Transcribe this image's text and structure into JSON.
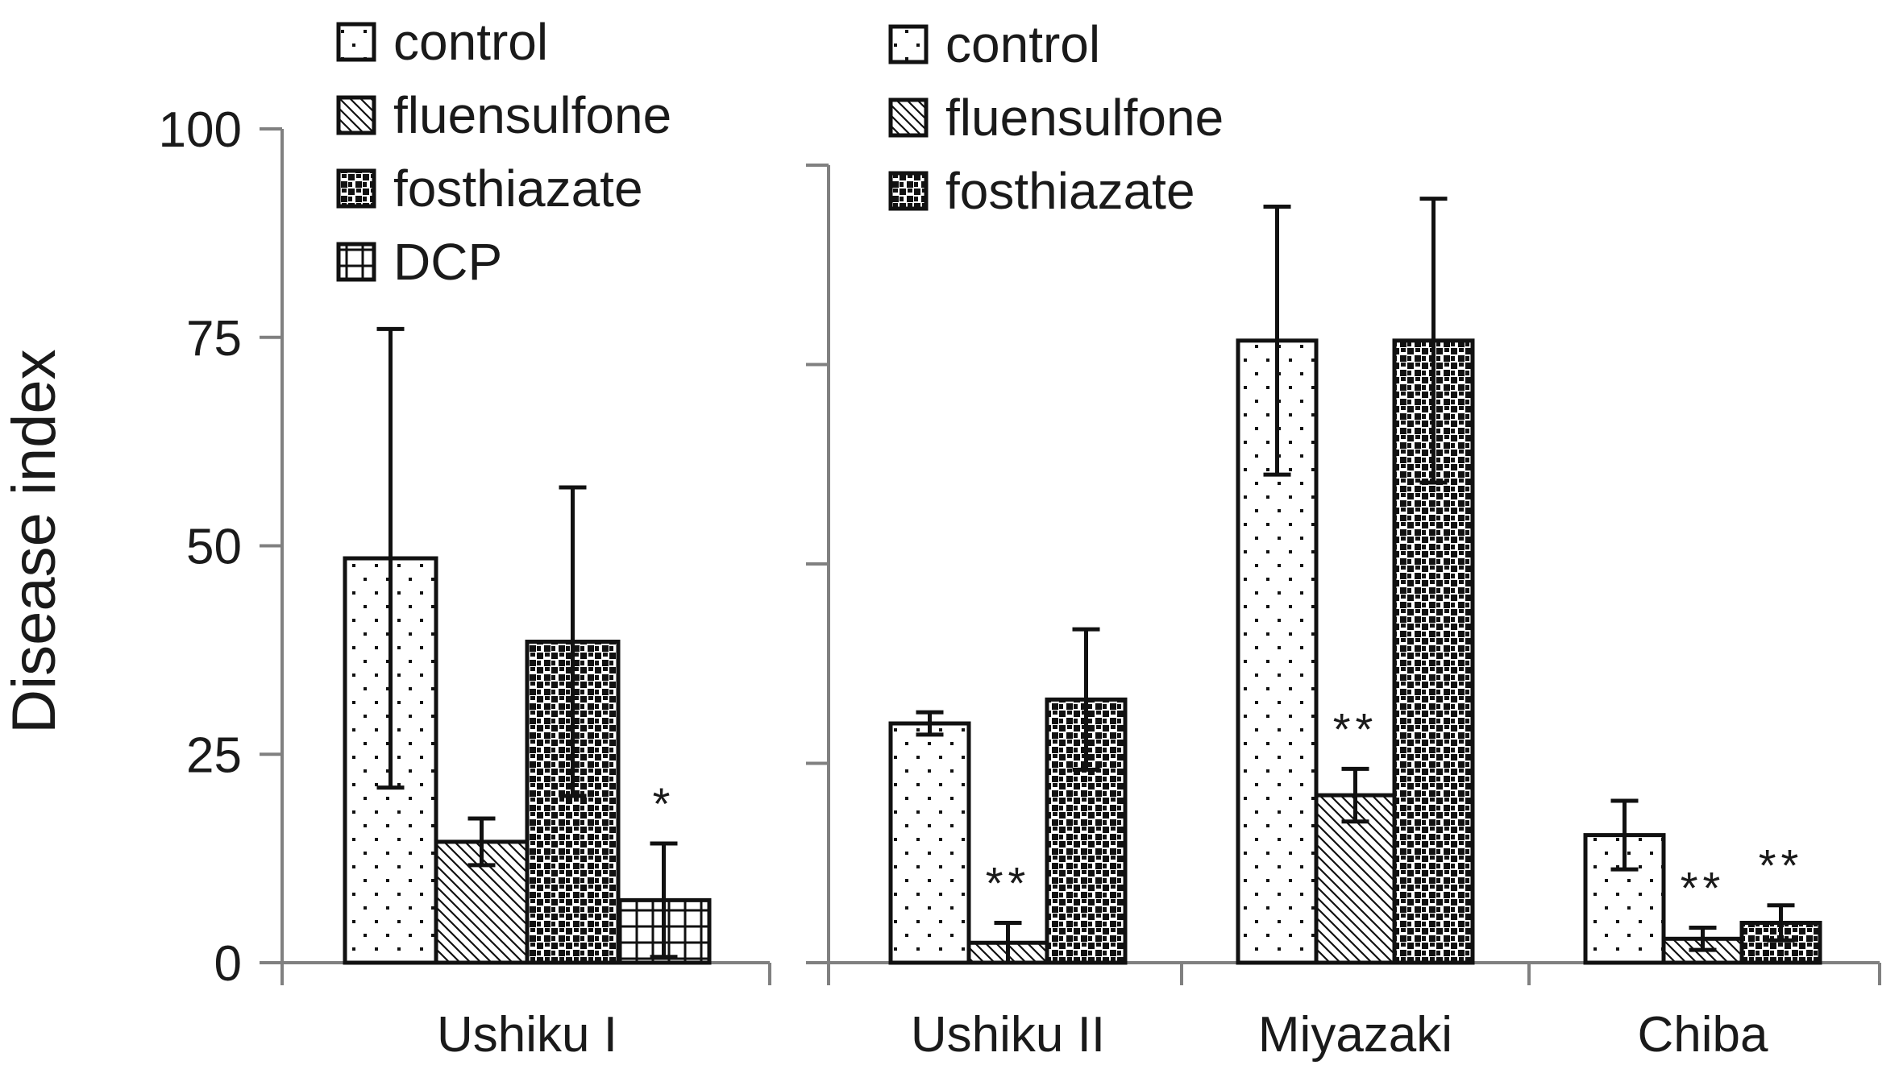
{
  "y_axis_title": "Disease index",
  "chart_data": [
    {
      "type": "bar",
      "panel": "left",
      "categories": [
        "Ushiku I"
      ],
      "ylim": [
        0,
        100
      ],
      "yticks": [
        "0",
        "25",
        "50",
        "75",
        "100"
      ],
      "ylabel": "Disease index",
      "legend": [
        "control",
        "fluensulfone",
        "fosthiazate",
        "DCP"
      ],
      "legend_position": "top-left",
      "series": [
        {
          "name": "control",
          "values": [
            48.5
          ],
          "error": [
            27.5
          ],
          "marker": [
            ""
          ]
        },
        {
          "name": "fluensulfone",
          "values": [
            14.5
          ],
          "error": [
            2.8
          ],
          "marker": [
            ""
          ]
        },
        {
          "name": "fosthiazate",
          "values": [
            38.5
          ],
          "error": [
            18.5
          ],
          "marker": [
            ""
          ]
        },
        {
          "name": "DCP",
          "values": [
            7.5
          ],
          "error": [
            6.8
          ],
          "marker": [
            "*"
          ]
        }
      ]
    },
    {
      "type": "bar",
      "panel": "right",
      "categories": [
        "Ushiku II",
        "Miyazaki",
        "Chiba"
      ],
      "ylim": [
        0,
        100
      ],
      "legend": [
        "control",
        "fluensulfone",
        "fosthiazate"
      ],
      "legend_position": "top-left",
      "series": [
        {
          "name": "control",
          "values": [
            30,
            78,
            16
          ],
          "error": [
            1.4,
            16.8,
            4.3
          ],
          "marker": [
            "",
            "",
            ""
          ]
        },
        {
          "name": "fluensulfone",
          "values": [
            2.5,
            21,
            3
          ],
          "error": [
            2.5,
            3.3,
            1.4
          ],
          "marker": [
            "**",
            "**",
            "**"
          ]
        },
        {
          "name": "fosthiazate",
          "values": [
            33,
            78,
            5
          ],
          "error": [
            8.8,
            17.8,
            2.2
          ],
          "marker": [
            "",
            "",
            "**"
          ]
        }
      ]
    }
  ]
}
